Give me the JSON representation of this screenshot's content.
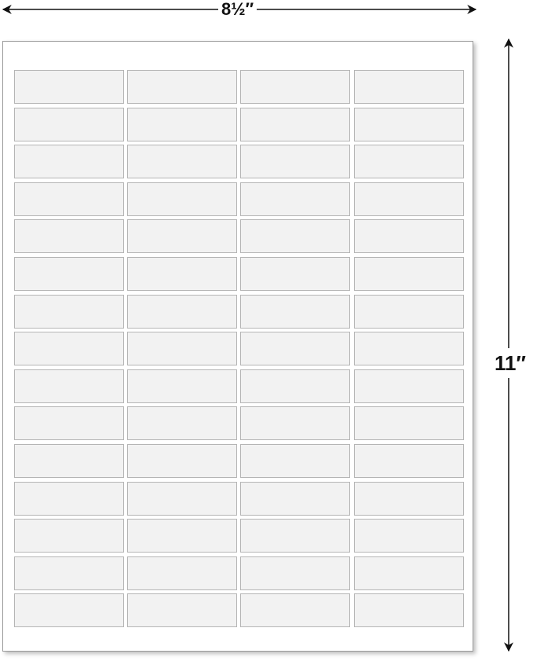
{
  "dimensions": {
    "width": "8½″",
    "height": "11″"
  },
  "sheet": {
    "columns": 4,
    "rows": 15,
    "label_fill": "#f2f2f2",
    "label_border": "#b5b5b5"
  }
}
